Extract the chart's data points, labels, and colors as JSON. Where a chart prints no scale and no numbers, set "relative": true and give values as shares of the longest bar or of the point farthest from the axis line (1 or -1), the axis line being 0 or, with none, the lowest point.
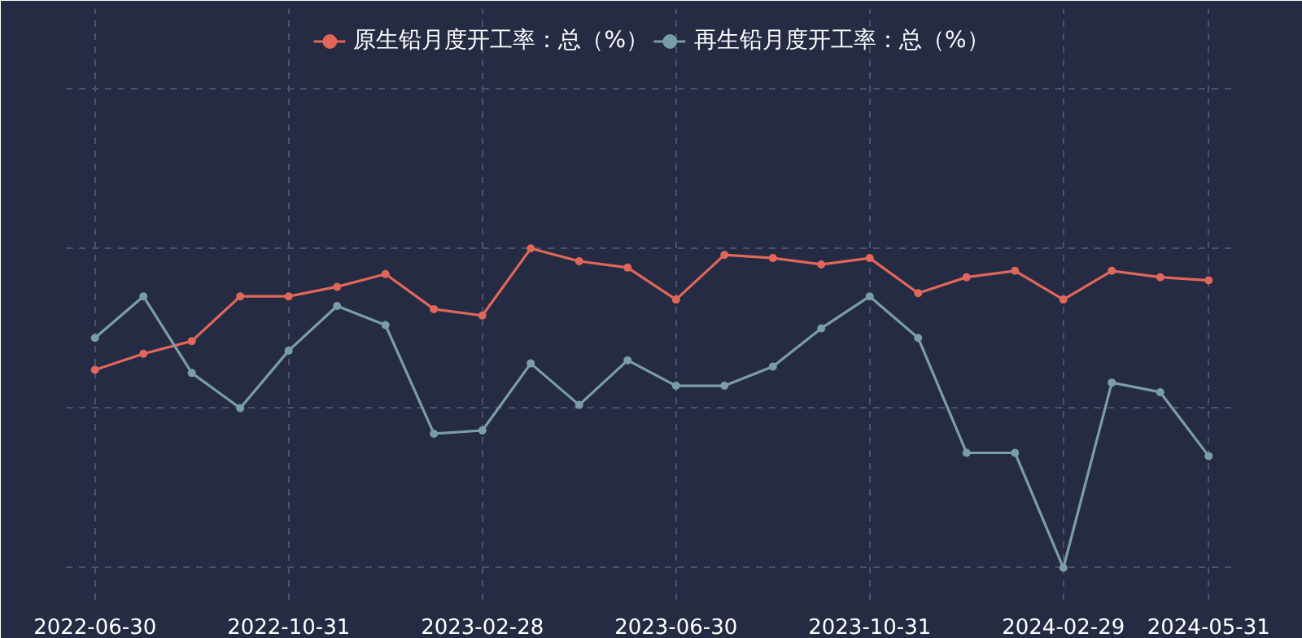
{
  "chart_data": {
    "type": "line",
    "relative": true,
    "categories": [
      "2022-06-30",
      null,
      null,
      null,
      "2022-10-31",
      null,
      null,
      null,
      "2023-02-28",
      null,
      null,
      null,
      "2023-06-30",
      null,
      null,
      null,
      "2023-10-31",
      null,
      null,
      null,
      "2024-02-29",
      null,
      null,
      "2024-05-31"
    ],
    "series": [
      {
        "name": "原生铅月度开工率：总（%）",
        "color": "#e0675a",
        "values": [
          0.62,
          0.67,
          0.71,
          0.85,
          0.85,
          0.88,
          0.92,
          0.81,
          0.79,
          1,
          0.96,
          0.94,
          0.84,
          0.98,
          0.97,
          0.95,
          0.97,
          0.86,
          0.91,
          0.93,
          0.84,
          0.93,
          0.91,
          0.9
        ]
      },
      {
        "name": "再生铅月度开工率：总（%）",
        "color": "#7a9ea8",
        "values": [
          0.72,
          0.85,
          0.61,
          0.5,
          0.68,
          0.82,
          0.76,
          0.42,
          0.43,
          0.64,
          0.51,
          0.65,
          0.57,
          0.57,
          0.63,
          0.75,
          0.85,
          0.72,
          0.36,
          0.36,
          0,
          0.58,
          0.55,
          0.35
        ]
      }
    ],
    "legend": "top",
    "grid": true,
    "marker": "circle",
    "line_style": "solid"
  }
}
